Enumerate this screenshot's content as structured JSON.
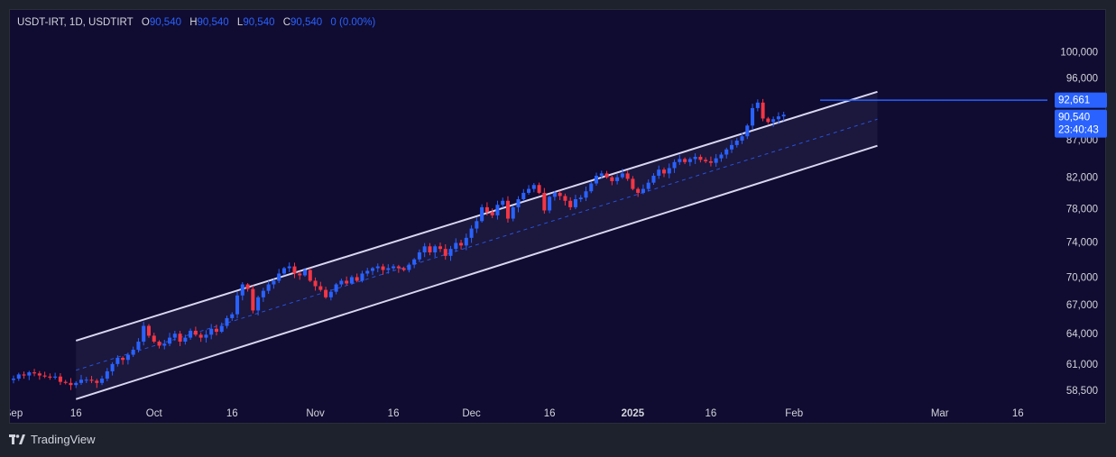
{
  "header": {
    "symbol": "USDT-IRT, 1D, USDTIRT",
    "o_label": "O",
    "o_value": "90,540",
    "h_label": "H",
    "h_value": "90,540",
    "l_label": "L",
    "l_value": "90,540",
    "c_label": "C",
    "c_value": "90,540",
    "change": "0 (0.00%)"
  },
  "footer": {
    "brand": "TradingView",
    "logo_icon": "tradingview-logo-icon"
  },
  "colors": {
    "background": "#100b30",
    "up": "#2962ff",
    "down": "#f23645",
    "channel": "#d8d6f0",
    "channel_fill": "rgba(200,190,240,0.07)",
    "midline": "#2962ff",
    "hline": "#2962ff",
    "text": "#d1d4dc"
  },
  "chart_data": {
    "type": "candlestick",
    "y_scale": "log",
    "ylim": [
      57600,
      103000
    ],
    "y_ticks": [
      {
        "value": 100000,
        "label": "100,000"
      },
      {
        "value": 96000,
        "label": "96,000"
      },
      {
        "value": 87000,
        "label": "87,000"
      },
      {
        "value": 82000,
        "label": "82,000"
      },
      {
        "value": 78000,
        "label": "78,000"
      },
      {
        "value": 74000,
        "label": "74,000"
      },
      {
        "value": 70000,
        "label": "70,000"
      },
      {
        "value": 67000,
        "label": "67,000"
      },
      {
        "value": 64000,
        "label": "64,000"
      },
      {
        "value": 61000,
        "label": "61,000"
      },
      {
        "value": 58500,
        "label": "58,500"
      }
    ],
    "x_range": [
      "2024-09-04",
      "2025-03-30"
    ],
    "x_ticks": [
      {
        "date": "2024-09-04",
        "label": "Sep",
        "bold": false
      },
      {
        "date": "2024-09-16",
        "label": "16",
        "bold": false
      },
      {
        "date": "2024-10-01",
        "label": "Oct",
        "bold": false
      },
      {
        "date": "2024-10-16",
        "label": "16",
        "bold": false
      },
      {
        "date": "2024-11-01",
        "label": "Nov",
        "bold": false
      },
      {
        "date": "2024-11-16",
        "label": "16",
        "bold": false
      },
      {
        "date": "2024-12-01",
        "label": "Dec",
        "bold": false
      },
      {
        "date": "2024-12-16",
        "label": "16",
        "bold": false
      },
      {
        "date": "2025-01-01",
        "label": "2025",
        "bold": true
      },
      {
        "date": "2025-01-16",
        "label": "16",
        "bold": false
      },
      {
        "date": "2025-02-01",
        "label": "Feb",
        "bold": false
      },
      {
        "date": "2025-03-01",
        "label": "Mar",
        "bold": false
      },
      {
        "date": "2025-03-16",
        "label": "16",
        "bold": false
      }
    ],
    "price_labels": [
      {
        "value": 92661,
        "lines": [
          "92,661"
        ]
      },
      {
        "value": 90540,
        "lines": [
          "90,540",
          "23:40:43"
        ]
      }
    ],
    "horizontal_line": {
      "value": 92661,
      "start": "2025-02-06"
    },
    "channel": {
      "start": "2024-09-16",
      "end": "2025-02-17",
      "upper": [
        63300,
        93900
      ],
      "lower": [
        57700,
        86200
      ],
      "mid": [
        60400,
        89900
      ]
    },
    "candle_start": "2024-09-04",
    "candle_closes": [
      59600,
      60000,
      59900,
      60200,
      60100,
      59900,
      59800,
      59700,
      59800,
      59300,
      59200,
      59000,
      59200,
      59500,
      59500,
      59400,
      59200,
      59600,
      60300,
      61000,
      61600,
      61400,
      61900,
      62400,
      63200,
      64800,
      63800,
      63200,
      62800,
      63000,
      63600,
      64000,
      63200,
      63600,
      64300,
      63900,
      63600,
      63900,
      64500,
      64200,
      64800,
      65600,
      66000,
      68000,
      69200,
      68700,
      66400,
      67800,
      68500,
      69200,
      69600,
      70400,
      71000,
      71200,
      70400,
      70200,
      70800,
      69600,
      69000,
      68600,
      67800,
      68400,
      69200,
      69600,
      69300,
      70000,
      69600,
      70400,
      70700,
      71000,
      71200,
      70800,
      71000,
      71200,
      71000,
      70800,
      71400,
      72000,
      72800,
      73500,
      72800,
      73500,
      73200,
      72400,
      73200,
      73900,
      73600,
      74500,
      75600,
      76500,
      78200,
      77600,
      77200,
      78500,
      79000,
      76800,
      78200,
      79200,
      80000,
      80500,
      81000,
      80000,
      77800,
      79500,
      80000,
      79600,
      79000,
      78200,
      79200,
      79400,
      80200,
      81200,
      82200,
      82500,
      82000,
      81500,
      82000,
      82500,
      81800,
      80500,
      80000,
      80500,
      81300,
      82200,
      83000,
      82500,
      83200,
      84000,
      84400,
      84000,
      84400,
      84700,
      84300,
      84100,
      83900,
      84500,
      85000,
      85700,
      86300,
      86900,
      87500,
      89000,
      91500,
      92300,
      90000,
      89500,
      89900,
      90300,
      90540
    ]
  }
}
